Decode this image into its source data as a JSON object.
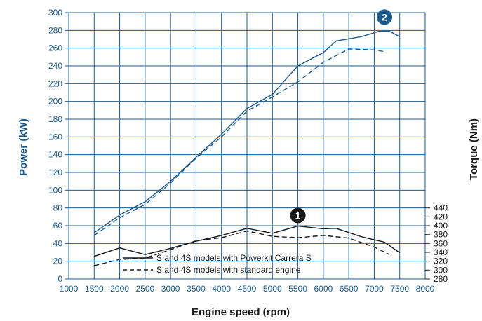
{
  "chart_data": {
    "type": "line",
    "xlabel": "Engine speed (rpm)",
    "ylabel_left": "Power (kW)",
    "ylabel_right": "Torque (Nm)",
    "xlim": [
      1000,
      8000
    ],
    "x_ticks": [
      1000,
      1500,
      2000,
      2500,
      3000,
      3500,
      4000,
      4500,
      5000,
      5500,
      6000,
      6500,
      7000,
      7500,
      8000
    ],
    "ylim_left": [
      0,
      300
    ],
    "y_ticks_left": [
      0,
      20,
      40,
      60,
      80,
      100,
      120,
      140,
      160,
      180,
      200,
      220,
      240,
      260,
      280,
      300
    ],
    "ylim_right": [
      280,
      440
    ],
    "y_ticks_right": [
      280,
      300,
      320,
      340,
      360,
      380,
      400,
      420,
      440
    ],
    "grid": true,
    "legend_position": "bottom-left",
    "legend": [
      {
        "label": "S and 4S models with Powerkit Carrera S",
        "style": "solid"
      },
      {
        "label": "S and 4S models with standard engine",
        "style": "dashed"
      }
    ],
    "markers": [
      {
        "label": "1",
        "x": 5500,
        "axis": "right",
        "y": 423
      },
      {
        "label": "2",
        "x": 7200,
        "axis": "left",
        "y": 295
      }
    ],
    "series": [
      {
        "group": "power",
        "axis": "left",
        "style": "solid",
        "color": "#1a5a8c",
        "points": [
          [
            1500,
            52
          ],
          [
            2000,
            72
          ],
          [
            2500,
            87
          ],
          [
            3000,
            110
          ],
          [
            3500,
            137
          ],
          [
            4000,
            163
          ],
          [
            4500,
            192
          ],
          [
            5000,
            208
          ],
          [
            5500,
            240
          ],
          [
            6000,
            255
          ],
          [
            6250,
            268
          ],
          [
            6750,
            273
          ],
          [
            7100,
            279
          ],
          [
            7300,
            279
          ],
          [
            7500,
            273
          ]
        ]
      },
      {
        "group": "power",
        "axis": "left",
        "style": "dashed",
        "color": "#1a5a8c",
        "points": [
          [
            1500,
            49
          ],
          [
            2000,
            69
          ],
          [
            2500,
            84
          ],
          [
            3000,
            108
          ],
          [
            3500,
            136
          ],
          [
            4000,
            160
          ],
          [
            4500,
            189
          ],
          [
            5000,
            205
          ],
          [
            5500,
            222
          ],
          [
            6000,
            244
          ],
          [
            6500,
            259
          ],
          [
            7000,
            258
          ],
          [
            7200,
            256
          ]
        ]
      },
      {
        "group": "torque",
        "axis": "right",
        "style": "solid",
        "color": "#1a1a1a",
        "points": [
          [
            1500,
            331
          ],
          [
            2000,
            350
          ],
          [
            2500,
            335
          ],
          [
            3000,
            349
          ],
          [
            3500,
            365
          ],
          [
            4000,
            378
          ],
          [
            4500,
            394
          ],
          [
            5000,
            383
          ],
          [
            5500,
            399
          ],
          [
            6000,
            393
          ],
          [
            6250,
            394
          ],
          [
            6750,
            375
          ],
          [
            7200,
            363
          ],
          [
            7500,
            339
          ]
        ]
      },
      {
        "group": "torque",
        "axis": "right",
        "style": "dashed",
        "color": "#1a1a1a",
        "points": [
          [
            1500,
            310
          ],
          [
            2000,
            324
          ],
          [
            2500,
            327
          ],
          [
            3000,
            346
          ],
          [
            3500,
            366
          ],
          [
            4000,
            373
          ],
          [
            4500,
            388
          ],
          [
            5000,
            376
          ],
          [
            5500,
            373
          ],
          [
            6000,
            378
          ],
          [
            6500,
            372
          ],
          [
            7000,
            352
          ],
          [
            7300,
            335
          ]
        ]
      }
    ]
  }
}
